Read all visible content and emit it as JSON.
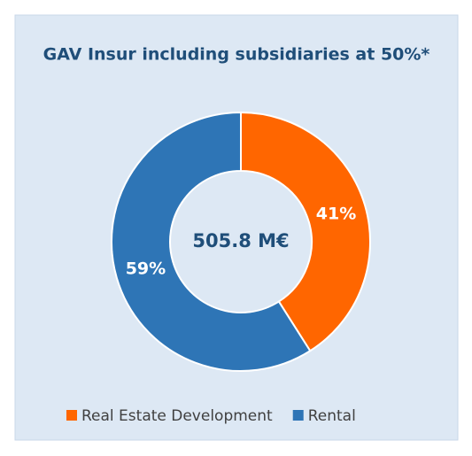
{
  "chart_data": {
    "type": "donut",
    "title": "GAV Insur including subsidiaries at 50%*",
    "center_label": "505.8 M€",
    "categories": [
      "Real Estate Development",
      "Rental"
    ],
    "values": [
      41,
      59
    ],
    "value_labels": [
      "41%",
      "59%"
    ],
    "colors": [
      "#ff6600",
      "#2e75b6"
    ],
    "legend": "bottom"
  }
}
